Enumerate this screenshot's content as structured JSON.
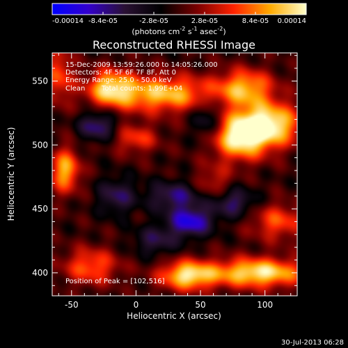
{
  "chart_data": {
    "type": "heatmap",
    "title": "Reconstructed RHESSI Image",
    "xlabel": "Heliocentric X (arcsec)",
    "ylabel": "Heliocentric Y (arcsec)",
    "xlim": [
      -65,
      125
    ],
    "ylim": [
      382,
      572
    ],
    "x_ticks": [
      -50,
      0,
      50,
      100
    ],
    "y_ticks": [
      400,
      450,
      500,
      550
    ],
    "colorbar": {
      "ticks": [
        "-0.00014",
        "-8.4e-05",
        "-2.8e-05",
        "2.8e-05",
        "8.4e-05",
        "0.00014"
      ],
      "label_main": "(photons cm",
      "label_exp1": "-2",
      "label_mid": " s",
      "label_exp2": "-1",
      "label_end": " asec",
      "label_exp3": "-2",
      "label_close": ")",
      "colormap_stops": [
        "#0000ff",
        "#3300cc",
        "#2a1133",
        "#000000",
        "#7a0000",
        "#ff2200",
        "#ffaa00",
        "#ffffcc"
      ],
      "range": [
        -0.00014,
        0.00014
      ]
    },
    "annotations": {
      "time_range": "15-Dec-2009 13:59:26.000 to 14:05:26.000",
      "detectors": "Detectors: 4F 5F 6F 7F 8F, Att 0",
      "energy": "Energy Range: 25.0 - 50.0 keV",
      "algorithm": "Clean",
      "counts": "Total counts: 1.99E+04",
      "peak": "Position of Peak = [102,516]"
    },
    "sources": [
      {
        "x": 102,
        "y": 516,
        "amp": 1.0,
        "sx": 18,
        "sy": 12
      },
      {
        "x": 80,
        "y": 505,
        "amp": 0.85,
        "sx": 15,
        "sy": 12
      },
      {
        "x": 95,
        "y": 400,
        "amp": 0.95,
        "sx": 25,
        "sy": 8
      },
      {
        "x": 40,
        "y": 398,
        "amp": 0.9,
        "sx": 15,
        "sy": 8
      },
      {
        "x": 20,
        "y": 540,
        "amp": 0.8,
        "sx": 30,
        "sy": 10
      },
      {
        "x": -20,
        "y": 545,
        "amp": 0.7,
        "sx": 12,
        "sy": 10
      },
      {
        "x": 85,
        "y": 545,
        "amp": 0.7,
        "sx": 15,
        "sy": 10
      },
      {
        "x": -55,
        "y": 480,
        "amp": 0.75,
        "sx": 8,
        "sy": 12
      },
      {
        "x": -35,
        "y": 405,
        "amp": 0.55,
        "sx": 15,
        "sy": 10
      },
      {
        "x": -60,
        "y": 555,
        "amp": 0.5,
        "sx": 8,
        "sy": 15
      },
      {
        "x": 110,
        "y": 440,
        "amp": 0.5,
        "sx": 15,
        "sy": 10
      },
      {
        "x": 0,
        "y": 505,
        "amp": 0.45,
        "sx": 12,
        "sy": 8
      },
      {
        "x": 60,
        "y": 470,
        "amp": 0.35,
        "sx": 10,
        "sy": 10
      },
      {
        "x": 42,
        "y": 440,
        "amp": -0.75,
        "sx": 12,
        "sy": 8
      },
      {
        "x": -30,
        "y": 515,
        "amp": -0.55,
        "sx": 10,
        "sy": 8
      },
      {
        "x": 30,
        "y": 460,
        "amp": -0.5,
        "sx": 15,
        "sy": 8
      },
      {
        "x": 75,
        "y": 455,
        "amp": -0.5,
        "sx": 12,
        "sy": 8
      },
      {
        "x": -15,
        "y": 460,
        "amp": -0.45,
        "sx": 10,
        "sy": 10
      },
      {
        "x": 55,
        "y": 520,
        "amp": -0.4,
        "sx": 8,
        "sy": 12
      },
      {
        "x": 15,
        "y": 425,
        "amp": -0.4,
        "sx": 12,
        "sy": 8
      }
    ]
  },
  "footer": {
    "timestamp": "30-Jul-2013 06:28"
  }
}
